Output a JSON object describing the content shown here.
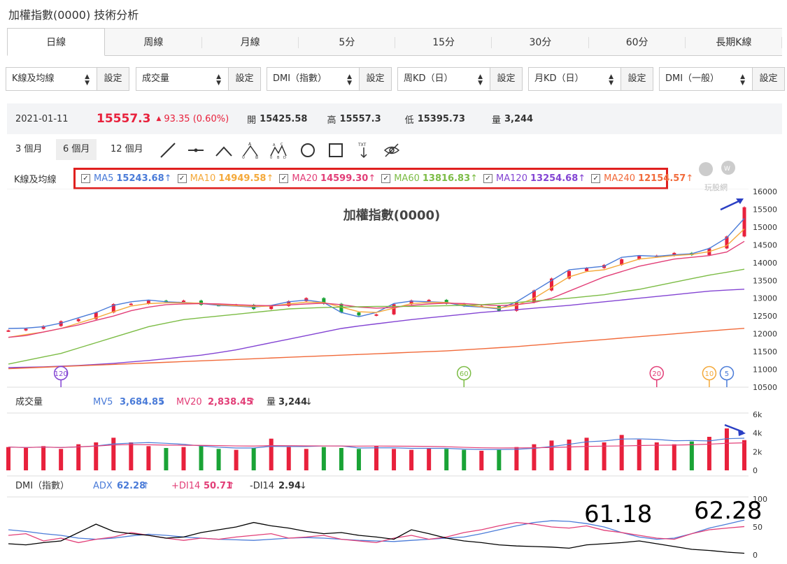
{
  "page": {
    "title": "加權指數(0000) 技術分析"
  },
  "period_tabs": [
    "日線",
    "周線",
    "月線",
    "5分",
    "15分",
    "30分",
    "60分",
    "長期K線"
  ],
  "selectors": [
    {
      "value": "K線及均線",
      "setting": "設定"
    },
    {
      "value": "成交量",
      "setting": "設定"
    },
    {
      "value": "DMI（指數）",
      "setting": "設定"
    },
    {
      "value": "周KD（日）",
      "setting": "設定"
    },
    {
      "value": "月KD（日）",
      "setting": "設定"
    },
    {
      "value": "DMI（一般）",
      "setting": "設定"
    }
  ],
  "quote": {
    "date": "2021-01-11",
    "price": "15557.3",
    "change": "93.35 (0.60%)",
    "open_label": "開",
    "open": "15425.58",
    "high_label": "高",
    "high": "15557.3",
    "low_label": "低",
    "low": "15395.73",
    "vol_label": "量",
    "vol": "3,244"
  },
  "ranges": [
    "3 個月",
    "6 個月",
    "12 個月"
  ],
  "colors": {
    "up": "#e8213c",
    "down": "#1aa336",
    "ma5": "#4a7bd8",
    "ma10": "#f4a93a",
    "ma20": "#e23e77",
    "ma60": "#7cbc45",
    "ma120": "#8344d3",
    "ma240": "#f16a3a",
    "annotation": "#e0201f",
    "arrow": "#2a3fc4"
  },
  "k_panel": {
    "label": "K線及均線",
    "chart_title": "加權指數(0000)",
    "ma": [
      {
        "name": "MA5",
        "value": "15243.68",
        "arrow": "↑",
        "color": "#4a7bd8"
      },
      {
        "name": "MA10",
        "value": "14949.58",
        "arrow": "↑",
        "color": "#f4a93a"
      },
      {
        "name": "MA20",
        "value": "14599.30",
        "arrow": "↑",
        "color": "#e23e77"
      },
      {
        "name": "MA60",
        "value": "13816.83",
        "arrow": "↑",
        "color": "#7cbc45"
      },
      {
        "name": "MA120",
        "value": "13254.68",
        "arrow": "↑",
        "color": "#8344d3"
      },
      {
        "name": "MA240",
        "value": "12154.57",
        "arrow": "↑",
        "color": "#f16a3a"
      }
    ],
    "y_ticks": [
      "16000",
      "15500",
      "15000",
      "14500",
      "14000",
      "13500",
      "13000",
      "12500",
      "12000",
      "11500",
      "11000",
      "10500"
    ],
    "markers": [
      "120",
      "60",
      "20",
      "10",
      "5"
    ],
    "watermark": "玩股網"
  },
  "volume_panel": {
    "label": "成交量",
    "mv5_label": "MV5",
    "mv5": "3,684.85",
    "mv5_arrow": "↓",
    "mv20_label": "MV20",
    "mv20": "2,838.45",
    "mv20_arrow": "↑",
    "vol_label": "量",
    "vol": "3,244",
    "vol_arrow": "↓",
    "y_ticks": [
      "6k",
      "4k",
      "2k",
      "0"
    ]
  },
  "dmi_panel": {
    "label": "DMI（指數）",
    "adx_label": "ADX",
    "adx": "62.28",
    "adx_arrow": "↑",
    "pdi_label": "+DI14",
    "pdi": "50.71",
    "pdi_arrow": "↑",
    "mdi_label": "-DI14",
    "mdi": "2.94",
    "mdi_arrow": "↓",
    "y_ticks": [
      "100",
      "50",
      "0"
    ],
    "annotations": [
      "61.18",
      "62.28"
    ]
  },
  "chart_data": [
    {
      "type": "candlestick",
      "title": "加權指數(0000)",
      "series": [
        {
          "name": "MA5",
          "values": [
            12150,
            12160,
            12200,
            12300,
            12450,
            12600,
            12800,
            12900,
            12950,
            12900,
            12880,
            12850,
            12800,
            12780,
            12750,
            12800,
            12900,
            12950,
            12880,
            12600,
            12480,
            12600,
            12850,
            12920,
            12900,
            12880,
            12780,
            12750,
            12700,
            12900,
            13200,
            13500,
            13800,
            13850,
            13900,
            14150,
            14200,
            14180,
            14220,
            14250,
            14400,
            14700,
            15243.68
          ]
        },
        {
          "name": "MA10",
          "values": [
            11900,
            11980,
            12050,
            12150,
            12300,
            12450,
            12620,
            12780,
            12850,
            12870,
            12870,
            12860,
            12820,
            12790,
            12770,
            12780,
            12840,
            12890,
            12880,
            12750,
            12620,
            12600,
            12720,
            12850,
            12880,
            12880,
            12820,
            12760,
            12720,
            12800,
            13000,
            13300,
            13600,
            13750,
            13800,
            13950,
            14100,
            14150,
            14200,
            14230,
            14310,
            14480,
            14949.58
          ]
        },
        {
          "name": "MA20",
          "values": [
            11900,
            11950,
            12050,
            12150,
            12250,
            12380,
            12500,
            12650,
            12750,
            12820,
            12840,
            12850,
            12840,
            12820,
            12800,
            12790,
            12810,
            12840,
            12860,
            12820,
            12750,
            12720,
            12740,
            12800,
            12840,
            12860,
            12850,
            12820,
            12790,
            12820,
            12880,
            13000,
            13200,
            13400,
            13600,
            13750,
            13900,
            14000,
            14100,
            14150,
            14200,
            14300,
            14599.3
          ]
        },
        {
          "name": "MA60",
          "values": [
            11150,
            11250,
            11350,
            11450,
            11600,
            11750,
            11900,
            12050,
            12200,
            12300,
            12400,
            12450,
            12500,
            12550,
            12600,
            12650,
            12700,
            12720,
            12740,
            12750,
            12760,
            12770,
            12770,
            12770,
            12780,
            12790,
            12800,
            12820,
            12850,
            12880,
            12920,
            12960,
            13000,
            13050,
            13100,
            13180,
            13250,
            13350,
            13450,
            13550,
            13650,
            13730,
            13816.83
          ]
        },
        {
          "name": "MA120",
          "values": [
            11050,
            11060,
            11070,
            11090,
            11110,
            11140,
            11170,
            11210,
            11250,
            11300,
            11350,
            11400,
            11470,
            11550,
            11650,
            11750,
            11850,
            11950,
            12050,
            12150,
            12220,
            12280,
            12340,
            12400,
            12450,
            12500,
            12550,
            12600,
            12640,
            12680,
            12720,
            12760,
            12800,
            12850,
            12900,
            12950,
            13000,
            13050,
            13100,
            13150,
            13200,
            13230,
            13254.68
          ]
        },
        {
          "name": "MA240",
          "values": [
            11020,
            11040,
            11060,
            11080,
            11100,
            11120,
            11140,
            11160,
            11180,
            11200,
            11220,
            11240,
            11260,
            11280,
            11300,
            11320,
            11340,
            11360,
            11380,
            11400,
            11420,
            11440,
            11460,
            11480,
            11500,
            11520,
            11550,
            11580,
            11610,
            11640,
            11680,
            11720,
            11760,
            11800,
            11840,
            11880,
            11920,
            11960,
            12000,
            12040,
            12080,
            12120,
            12154.57
          ]
        }
      ],
      "ylim": [
        10500,
        16000
      ],
      "ohlc_close_last": 15557.3
    },
    {
      "type": "bar",
      "title": "成交量",
      "values": [
        2.5,
        2.4,
        2.6,
        2.3,
        2.8,
        3.0,
        3.5,
        3.0,
        2.6,
        2.4,
        2.5,
        2.6,
        2.3,
        2.2,
        2.4,
        3.4,
        2.5,
        2.3,
        2.5,
        2.4,
        2.3,
        2.6,
        2.3,
        2.2,
        2.4,
        2.3,
        2.2,
        2.1,
        2.2,
        2.5,
        2.8,
        3.2,
        3.3,
        3.5,
        3.0,
        3.8,
        3.3,
        3.0,
        2.8,
        3.1,
        3.6,
        4.5,
        3.244
      ],
      "series": [
        {
          "name": "MV5",
          "value_last": 3684.85
        },
        {
          "name": "MV20",
          "value_last": 2838.45
        }
      ],
      "ylim": [
        0,
        6
      ]
    },
    {
      "type": "line",
      "title": "DMI（指數）",
      "series": [
        {
          "name": "ADX",
          "values": [
            45,
            42,
            38,
            35,
            30,
            28,
            30,
            34,
            37,
            35,
            32,
            30,
            28,
            27,
            26,
            28,
            30,
            31,
            30,
            28,
            26,
            25,
            24,
            26,
            28,
            30,
            32,
            38,
            45,
            52,
            58,
            61.18,
            60,
            56,
            50,
            40,
            32,
            28,
            30,
            38,
            48,
            55,
            62.28
          ]
        },
        {
          "name": "+DI14",
          "values": [
            35,
            38,
            25,
            30,
            22,
            28,
            32,
            40,
            35,
            30,
            26,
            30,
            28,
            32,
            35,
            38,
            30,
            32,
            35,
            28,
            25,
            22,
            30,
            35,
            28,
            32,
            40,
            45,
            52,
            58,
            55,
            50,
            48,
            52,
            44,
            40,
            35,
            30,
            28,
            38,
            45,
            48,
            50.71
          ]
        },
        {
          "name": "-DI14",
          "values": [
            20,
            18,
            22,
            25,
            40,
            55,
            42,
            38,
            35,
            30,
            32,
            40,
            45,
            50,
            58,
            52,
            48,
            42,
            38,
            40,
            35,
            32,
            28,
            45,
            38,
            30,
            25,
            22,
            18,
            16,
            15,
            14,
            12,
            18,
            20,
            22,
            25,
            20,
            15,
            10,
            8,
            5,
            2.94
          ]
        }
      ],
      "ylim": [
        0,
        100
      ]
    }
  ]
}
